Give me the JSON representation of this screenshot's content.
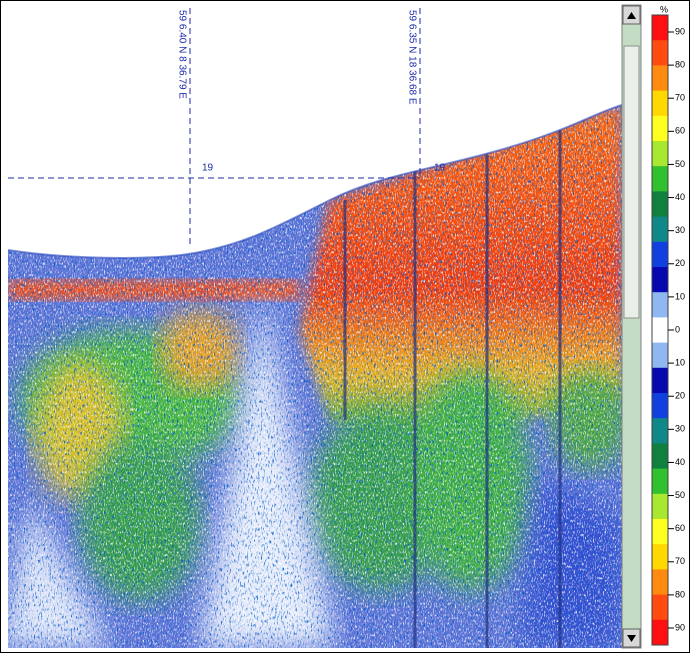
{
  "markers": [
    {
      "position": "59 6.40 N  8 36.79 E",
      "depth": "19"
    },
    {
      "position": "59 6.35 N  18 36.68 E",
      "depth": "19"
    }
  ],
  "scale": {
    "unit": "%",
    "labels": [
      "90",
      "80",
      "70",
      "60",
      "50",
      "40",
      "30",
      "20",
      "10",
      "0",
      "10",
      "20",
      "30",
      "40",
      "50",
      "60",
      "70",
      "80",
      "90"
    ]
  }
}
